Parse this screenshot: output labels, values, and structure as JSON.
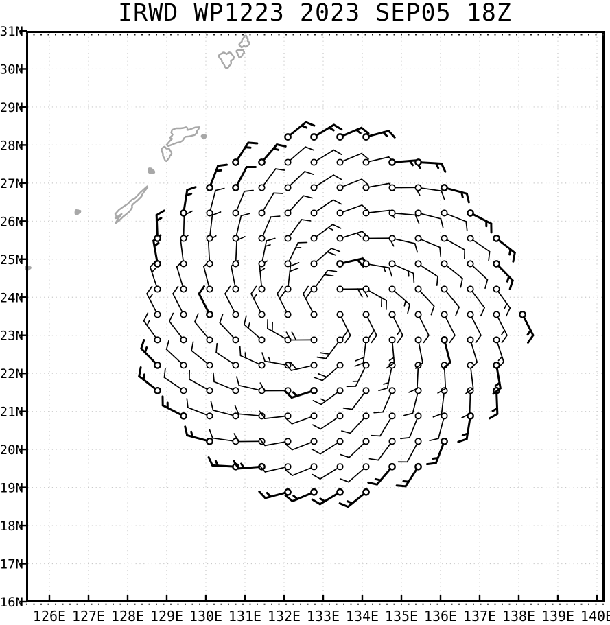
{
  "header": {
    "title": "IRWD WP1223 2023 SEP05 18Z"
  },
  "chart_data": {
    "type": "wind_barb_map",
    "title": "IRWD WP1223 2023 SEP05 18Z",
    "product": "IRWD",
    "storm_id": "WP1223",
    "valid_time": "2023 SEP05 18Z",
    "x_axis": {
      "tick_labels": [
        "126E",
        "127E",
        "128E",
        "129E",
        "130E",
        "131E",
        "132E",
        "133E",
        "134E",
        "135E",
        "136E",
        "137E",
        "138E",
        "139E",
        "140E"
      ],
      "tick_values": [
        126,
        127,
        128,
        129,
        130,
        131,
        132,
        133,
        134,
        135,
        136,
        137,
        138,
        139,
        140
      ],
      "range": [
        125.4,
        140.18
      ],
      "grid": "dotted"
    },
    "y_axis": {
      "tick_labels": [
        "16N",
        "17N",
        "18N",
        "19N",
        "20N",
        "21N",
        "22N",
        "23N",
        "24N",
        "25N",
        "26N",
        "27N",
        "28N",
        "29N",
        "30N",
        "31N"
      ],
      "tick_values": [
        16,
        17,
        18,
        19,
        20,
        21,
        22,
        23,
        24,
        25,
        26,
        27,
        28,
        29,
        30,
        31
      ],
      "range": [
        16,
        31
      ],
      "grid": "dotted"
    },
    "wind_field": {
      "units": "kt",
      "rotation": "counterclockwise",
      "center": {
        "lon": 133.1,
        "lat": 23.55
      },
      "grid_origin": {
        "lon": 127.43,
        "lat": 18.88
      },
      "grid_step_deg": 0.6667,
      "grid_cols": 18,
      "grid_rows": 15,
      "radius_lon_deg": 5.0,
      "radius_lat_deg": 4.85,
      "inflow_deg": 27,
      "feather_rotation_deg": 62,
      "speed_by_radius_deg": [
        {
          "r_max": 1.35,
          "kt": 20
        },
        {
          "r_max": 2.1,
          "kt": 15
        },
        {
          "r_max": 4.05,
          "kt": 10
        },
        {
          "r_max": 9.0,
          "kt": 15
        }
      ],
      "bold_outer_rho": 0.88,
      "bold_hash_mod": 23
    },
    "map_features": [
      {
        "name": "tanegashima-ring",
        "lon": 130.53,
        "lat": 30.26,
        "rx": 0.16,
        "ry": 0.19,
        "rot": 15,
        "wobble": [
          0.22,
          0.1
        ],
        "phase": [
          0.7,
          2.3
        ],
        "fill": false
      },
      {
        "name": "islet-north-a",
        "lon": 130.99,
        "lat": 30.7,
        "rx": 0.1,
        "ry": 0.14,
        "rot": -25,
        "wobble": [
          0.25,
          0.12
        ],
        "phase": [
          1.9,
          0.4
        ],
        "fill": false
      },
      {
        "name": "islet-north-b",
        "lon": 130.88,
        "lat": 30.42,
        "rx": 0.085,
        "ry": 0.095,
        "rot": 0,
        "wobble": [
          0.2,
          0.1
        ],
        "phase": [
          0.2,
          1.2
        ],
        "fill": false
      },
      {
        "name": "amami-oshima",
        "lon": 129.38,
        "lat": 28.27,
        "rx": 0.38,
        "ry": 0.16,
        "rot": 24,
        "wobble": [
          0.3,
          0.16
        ],
        "phase": [
          2.6,
          1.1
        ],
        "fill": false
      },
      {
        "name": "islet-amami-east",
        "lon": 129.95,
        "lat": 28.22,
        "rx": 0.055,
        "ry": 0.045,
        "rot": 0,
        "wobble": [
          0.15,
          0.0
        ],
        "phase": [
          0.0,
          0.0
        ],
        "fill": true
      },
      {
        "name": "tokunoshima",
        "lon": 128.99,
        "lat": 27.78,
        "rx": 0.11,
        "ry": 0.17,
        "rot": 12,
        "wobble": [
          0.18,
          0.08
        ],
        "phase": [
          1.3,
          2.8
        ],
        "fill": false
      },
      {
        "name": "okinoerabujima",
        "lon": 128.6,
        "lat": 27.32,
        "rx": 0.08,
        "ry": 0.055,
        "rot": -30,
        "wobble": [
          0.15,
          0.05
        ],
        "phase": [
          0.9,
          1.7
        ],
        "fill": true
      },
      {
        "name": "okinawa-honto",
        "lon": 128.02,
        "lat": 26.38,
        "rx": 0.5,
        "ry": 0.085,
        "rot": 46,
        "wobble": [
          0.35,
          0.2
        ],
        "phase": [
          1.6,
          0.3
        ],
        "fill": false
      },
      {
        "name": "kumejima",
        "lon": 126.72,
        "lat": 26.24,
        "rx": 0.065,
        "ry": 0.05,
        "rot": 20,
        "wobble": [
          0.2,
          0.1
        ],
        "phase": [
          2.2,
          0.8
        ],
        "fill": true
      },
      {
        "name": "islet-west-edge",
        "lon": 125.45,
        "lat": 24.77,
        "rx": 0.06,
        "ry": 0.045,
        "rot": 0,
        "wobble": [
          0.2,
          0.0
        ],
        "phase": [
          1.0,
          0.0
        ],
        "fill": true
      }
    ],
    "colors": {
      "barb": "#000000",
      "coastline": "#a8a8a8",
      "grid_dots": "#c9c9c9",
      "frame": "#000000",
      "background": "#ffffff"
    }
  }
}
